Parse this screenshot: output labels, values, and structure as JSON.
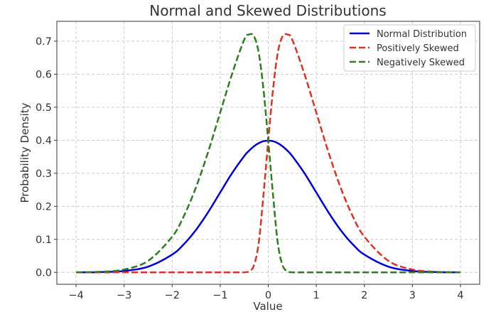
{
  "chart_data": {
    "type": "line",
    "title": "Normal and Skewed Distributions",
    "xlabel": "Value",
    "ylabel": "Probability Density",
    "xlim": [
      -4.4,
      4.4
    ],
    "ylim": [
      -0.036,
      0.76
    ],
    "xticks": [
      -4,
      -3,
      -2,
      -1,
      0,
      1,
      2,
      3,
      4
    ],
    "xtick_labels": [
      "−4",
      "−3",
      "−2",
      "−1",
      "0",
      "1",
      "2",
      "3",
      "4"
    ],
    "yticks": [
      0.0,
      0.1,
      0.2,
      0.3,
      0.4,
      0.5,
      0.6,
      0.7
    ],
    "ytick_labels": [
      "0.0",
      "0.1",
      "0.2",
      "0.3",
      "0.4",
      "0.5",
      "0.6",
      "0.7"
    ],
    "grid": true,
    "legend_position": "top-right",
    "x": [
      -4.0,
      -3.5,
      -3.0,
      -2.5,
      -2.0,
      -1.75,
      -1.5,
      -1.25,
      -1.0,
      -0.75,
      -0.5,
      -0.4,
      -0.3,
      -0.2,
      -0.1,
      0.0,
      0.1,
      0.2,
      0.3,
      0.4,
      0.5,
      0.75,
      1.0,
      1.25,
      1.5,
      1.75,
      2.0,
      2.5,
      3.0,
      3.5,
      4.0
    ],
    "series": [
      {
        "name": "Normal Distribution",
        "color": "#0000dd",
        "style": "solid",
        "values": [
          0.0001,
          0.0009,
          0.0044,
          0.0175,
          0.054,
          0.0863,
          0.1295,
          0.1826,
          0.242,
          0.3011,
          0.3521,
          0.3683,
          0.3814,
          0.391,
          0.397,
          0.3989,
          0.397,
          0.391,
          0.3814,
          0.3683,
          0.3521,
          0.3011,
          0.242,
          0.1826,
          0.1295,
          0.0863,
          0.054,
          0.0175,
          0.0044,
          0.0009,
          0.0001
        ]
      },
      {
        "name": "Positively Skewed",
        "color": "#dd3322",
        "style": "dashed",
        "values": [
          0.0,
          0.0,
          0.0,
          0.0,
          0.0,
          0.0,
          0.0,
          0.0,
          0.0,
          0.0,
          0.0003,
          0.0031,
          0.0207,
          0.0871,
          0.2338,
          0.3989,
          0.5546,
          0.6661,
          0.7156,
          0.7201,
          0.7044,
          0.6022,
          0.484,
          0.3652,
          0.259,
          0.1726,
          0.108,
          0.035,
          0.0088,
          0.0018,
          0.0002
        ]
      },
      {
        "name": "Negatively Skewed",
        "color": "#2e7d1e",
        "style": "dashed",
        "values": [
          0.0002,
          0.0018,
          0.0088,
          0.035,
          0.108,
          0.1726,
          0.259,
          0.3652,
          0.484,
          0.6022,
          0.7044,
          0.7201,
          0.7156,
          0.6661,
          0.5546,
          0.3989,
          0.2338,
          0.0871,
          0.0207,
          0.0031,
          0.0003,
          0.0,
          0.0,
          0.0,
          0.0,
          0.0,
          0.0,
          0.0,
          0.0,
          0.0,
          0.0
        ]
      }
    ]
  }
}
